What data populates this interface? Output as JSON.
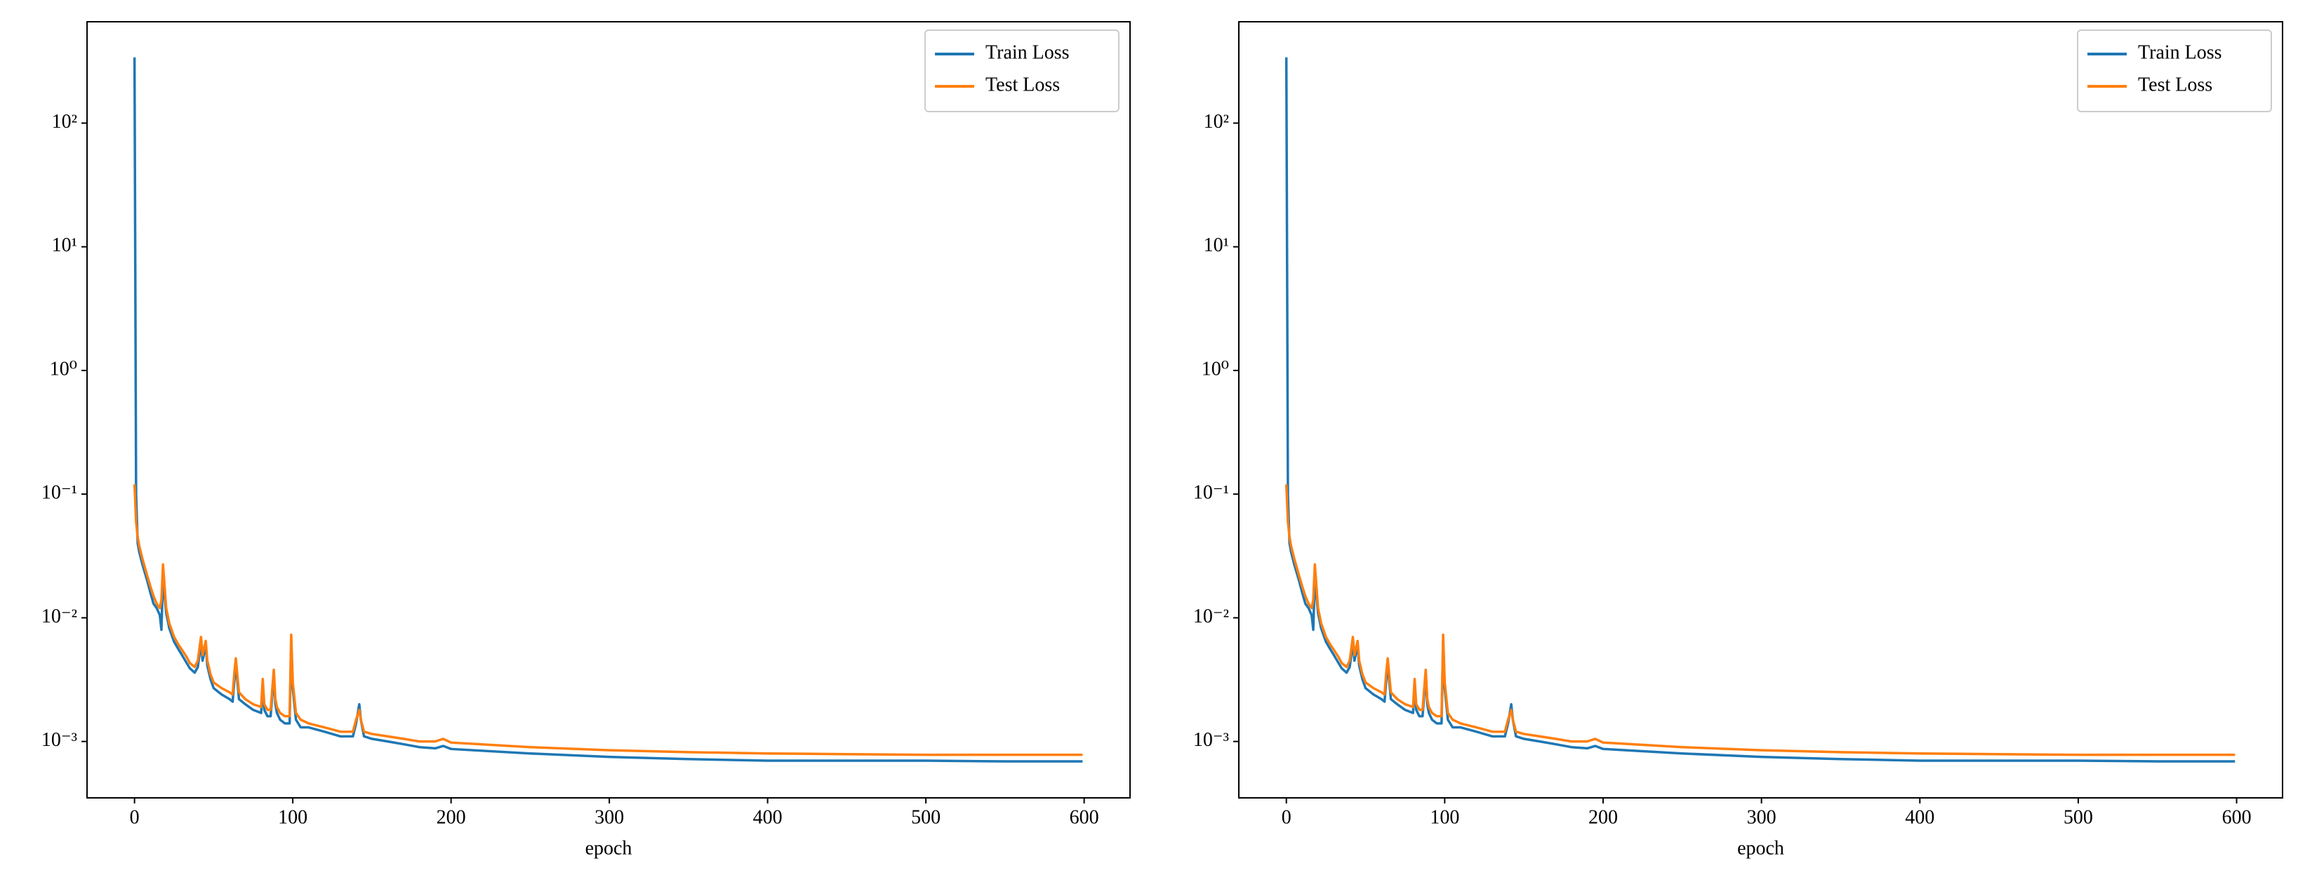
{
  "chart_data": [
    {
      "type": "line",
      "xlabel": "epoch",
      "log_y": true,
      "legend": "upper right",
      "x": [
        0,
        1,
        2,
        3,
        5,
        8,
        10,
        12,
        14,
        16,
        17,
        18,
        19,
        20,
        22,
        25,
        28,
        30,
        33,
        35,
        38,
        40,
        42,
        43,
        45,
        46,
        48,
        50,
        55,
        60,
        62,
        63,
        64,
        66,
        70,
        75,
        80,
        81,
        82,
        84,
        86,
        88,
        89,
        90,
        92,
        95,
        98,
        99,
        100,
        102,
        105,
        110,
        120,
        130,
        138,
        140,
        142,
        143,
        145,
        150,
        160,
        170,
        180,
        190,
        195,
        200,
        250,
        300,
        350,
        400,
        450,
        500,
        550,
        599
      ],
      "series": [
        {
          "name": "Train Loss",
          "color": "#1f77b4",
          "values": [
            340,
            0.1,
            0.04,
            0.034,
            0.027,
            0.02,
            0.016,
            0.013,
            0.012,
            0.0105,
            0.008,
            0.022,
            0.015,
            0.011,
            0.0082,
            0.0064,
            0.0055,
            0.005,
            0.0043,
            0.0039,
            0.0036,
            0.004,
            0.0062,
            0.0045,
            0.006,
            0.0041,
            0.0032,
            0.0027,
            0.0024,
            0.0022,
            0.0021,
            0.003,
            0.0043,
            0.0022,
            0.002,
            0.0018,
            0.0017,
            0.0028,
            0.0018,
            0.0016,
            0.0016,
            0.0034,
            0.002,
            0.0017,
            0.0015,
            0.0014,
            0.0014,
            0.0065,
            0.0027,
            0.0015,
            0.0013,
            0.0013,
            0.0012,
            0.0011,
            0.0011,
            0.0014,
            0.002,
            0.0015,
            0.0011,
            0.00105,
            0.001,
            0.00095,
            0.0009,
            0.00088,
            0.00092,
            0.00087,
            0.0008,
            0.00075,
            0.00072,
            0.0007,
            0.0007,
            0.0007,
            0.00069,
            0.00069
          ]
        },
        {
          "name": "Test Loss",
          "color": "#ff7f0e",
          "values": [
            0.12,
            0.06,
            0.045,
            0.038,
            0.03,
            0.022,
            0.018,
            0.015,
            0.013,
            0.012,
            0.014,
            0.027,
            0.018,
            0.012,
            0.009,
            0.007,
            0.006,
            0.0055,
            0.0048,
            0.0043,
            0.004,
            0.0045,
            0.007,
            0.005,
            0.0065,
            0.0045,
            0.0035,
            0.003,
            0.0027,
            0.0025,
            0.0024,
            0.0035,
            0.0047,
            0.0025,
            0.0022,
            0.002,
            0.0019,
            0.0032,
            0.002,
            0.0018,
            0.0018,
            0.0038,
            0.0022,
            0.0019,
            0.0017,
            0.0016,
            0.0016,
            0.0073,
            0.003,
            0.0017,
            0.0015,
            0.0014,
            0.0013,
            0.0012,
            0.0012,
            0.0015,
            0.0018,
            0.0015,
            0.0012,
            0.00115,
            0.0011,
            0.00105,
            0.001,
            0.001,
            0.00105,
            0.00098,
            0.0009,
            0.00085,
            0.00082,
            0.0008,
            0.00079,
            0.00078,
            0.00078,
            0.00078
          ]
        }
      ],
      "xlim": [
        -30,
        629
      ],
      "xticks": [
        0,
        100,
        200,
        300,
        400,
        500,
        600
      ],
      "ylim": [
        0.00035,
        660
      ],
      "yticks": [
        {
          "value": 0.001,
          "label": "10⁻³"
        },
        {
          "value": 0.01,
          "label": "10⁻²"
        },
        {
          "value": 0.1,
          "label": "10⁻¹"
        },
        {
          "value": 1,
          "label": "10⁰"
        },
        {
          "value": 10,
          "label": "10¹"
        },
        {
          "value": 100,
          "label": "10²"
        }
      ]
    },
    {
      "type": "line",
      "xlabel": "epoch",
      "log_y": true,
      "legend": "upper right",
      "x": [
        0,
        1,
        2,
        3,
        5,
        8,
        10,
        12,
        14,
        16,
        17,
        18,
        19,
        20,
        22,
        25,
        28,
        30,
        33,
        35,
        38,
        40,
        42,
        43,
        45,
        46,
        48,
        50,
        55,
        60,
        62,
        63,
        64,
        66,
        70,
        75,
        80,
        81,
        82,
        84,
        86,
        88,
        89,
        90,
        92,
        95,
        98,
        99,
        100,
        102,
        105,
        110,
        120,
        130,
        138,
        140,
        142,
        143,
        145,
        150,
        160,
        170,
        180,
        190,
        195,
        200,
        250,
        300,
        350,
        400,
        450,
        500,
        550,
        599
      ],
      "series": [
        {
          "name": "Train Loss",
          "color": "#1f77b4",
          "values": [
            340,
            0.1,
            0.04,
            0.034,
            0.027,
            0.02,
            0.016,
            0.013,
            0.012,
            0.0105,
            0.008,
            0.022,
            0.015,
            0.011,
            0.0082,
            0.0064,
            0.0055,
            0.005,
            0.0043,
            0.0039,
            0.0036,
            0.004,
            0.0062,
            0.0045,
            0.006,
            0.0041,
            0.0032,
            0.0027,
            0.0024,
            0.0022,
            0.0021,
            0.003,
            0.0043,
            0.0022,
            0.002,
            0.0018,
            0.0017,
            0.0028,
            0.0018,
            0.0016,
            0.0016,
            0.0034,
            0.002,
            0.0017,
            0.0015,
            0.0014,
            0.0014,
            0.0065,
            0.0027,
            0.0015,
            0.0013,
            0.0013,
            0.0012,
            0.0011,
            0.0011,
            0.0014,
            0.002,
            0.0015,
            0.0011,
            0.00105,
            0.001,
            0.00095,
            0.0009,
            0.00088,
            0.00092,
            0.00087,
            0.0008,
            0.00075,
            0.00072,
            0.0007,
            0.0007,
            0.0007,
            0.00069,
            0.00069
          ]
        },
        {
          "name": "Test Loss",
          "color": "#ff7f0e",
          "values": [
            0.12,
            0.06,
            0.045,
            0.038,
            0.03,
            0.022,
            0.018,
            0.015,
            0.013,
            0.012,
            0.014,
            0.027,
            0.018,
            0.012,
            0.009,
            0.007,
            0.006,
            0.0055,
            0.0048,
            0.0043,
            0.004,
            0.0045,
            0.007,
            0.005,
            0.0065,
            0.0045,
            0.0035,
            0.003,
            0.0027,
            0.0025,
            0.0024,
            0.0035,
            0.0047,
            0.0025,
            0.0022,
            0.002,
            0.0019,
            0.0032,
            0.002,
            0.0018,
            0.0018,
            0.0038,
            0.0022,
            0.0019,
            0.0017,
            0.0016,
            0.0016,
            0.0073,
            0.003,
            0.0017,
            0.0015,
            0.0014,
            0.0013,
            0.0012,
            0.0012,
            0.0015,
            0.0018,
            0.0015,
            0.0012,
            0.00115,
            0.0011,
            0.00105,
            0.001,
            0.001,
            0.00105,
            0.00098,
            0.0009,
            0.00085,
            0.00082,
            0.0008,
            0.00079,
            0.00078,
            0.00078,
            0.00078
          ]
        }
      ],
      "xlim": [
        -30,
        629
      ],
      "xticks": [
        0,
        100,
        200,
        300,
        400,
        500,
        600
      ],
      "ylim": [
        0.00035,
        660
      ],
      "yticks": [
        {
          "value": 0.001,
          "label": "10⁻³"
        },
        {
          "value": 0.01,
          "label": "10⁻²"
        },
        {
          "value": 0.1,
          "label": "10⁻¹"
        },
        {
          "value": 1,
          "label": "10⁰"
        },
        {
          "value": 10,
          "label": "10¹"
        },
        {
          "value": 100,
          "label": "10²"
        }
      ]
    }
  ]
}
